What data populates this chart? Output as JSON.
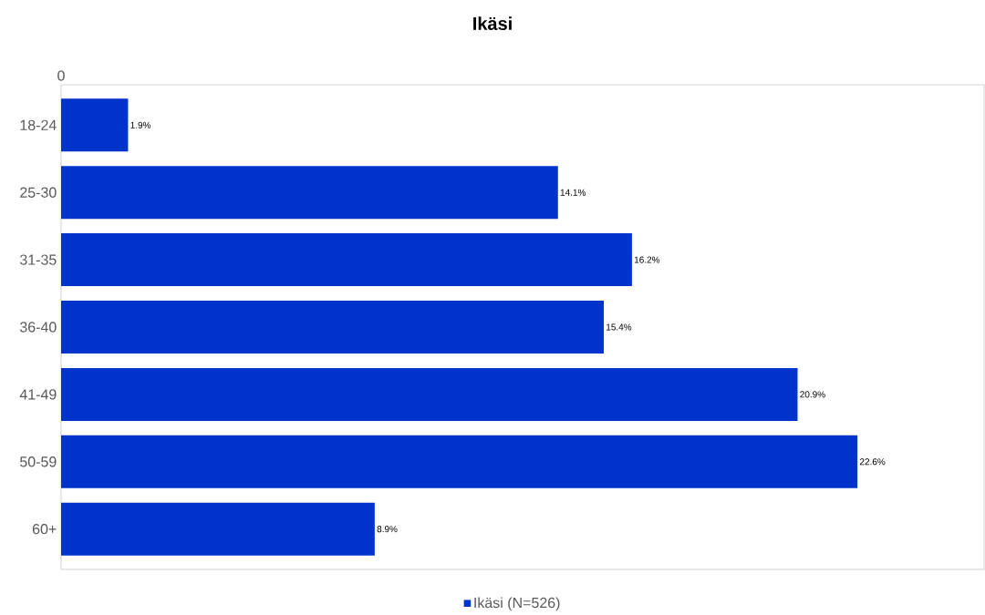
{
  "chart_data": {
    "type": "bar",
    "orientation": "horizontal",
    "title": "Ikäsi",
    "categories": [
      "18-24",
      "25-30",
      "31-35",
      "36-40",
      "41-49",
      "50-59",
      "60+"
    ],
    "series": [
      {
        "name": "Ikäsi (N=526)",
        "color": "#0033cc",
        "values": [
          1.9,
          14.1,
          16.2,
          15.4,
          20.9,
          22.6,
          8.9
        ],
        "value_labels": [
          "1.9%",
          "14.1%",
          "16.2%",
          "15.4%",
          "20.9%",
          "22.6%",
          "8.9%"
        ]
      }
    ],
    "annotations": [
      "0"
    ],
    "legend": "bottom"
  }
}
